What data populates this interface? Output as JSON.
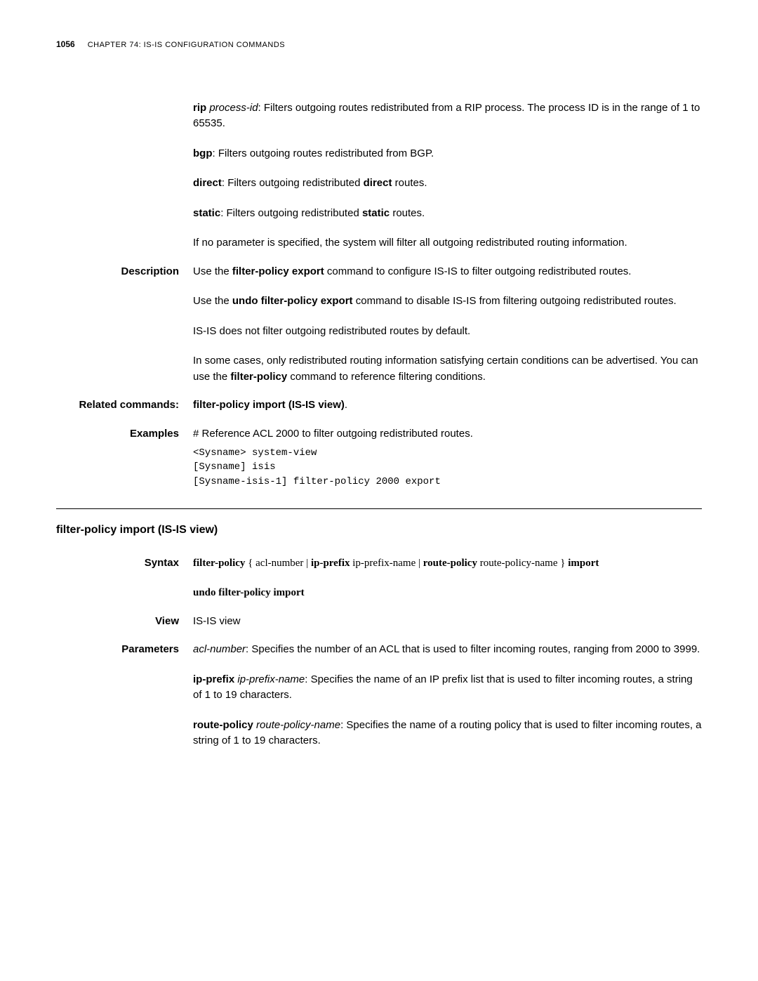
{
  "header": {
    "page_number": "1056",
    "chapter_prefix": "C",
    "chapter_word": "HAPTER",
    "chapter_num": " 74: IS-IS C",
    "chapter_suffix1": "ONFIGURATION",
    "chapter_suffix2": " C",
    "chapter_suffix3": "OMMANDS"
  },
  "top_params": {
    "rip_bold": "rip",
    "rip_italic": " process-id",
    "rip_text": ": Filters outgoing routes redistributed from a RIP process. The process ID is in the range of 1 to 65535.",
    "bgp_bold": "bgp",
    "bgp_text": ": Filters outgoing routes redistributed from BGP.",
    "direct_bold": "direct",
    "direct_text1": ": Filters outgoing redistributed ",
    "direct_bold2": "direct",
    "direct_text2": " routes.",
    "static_bold": "static",
    "static_text1": ": Filters outgoing redistributed ",
    "static_bold2": "static",
    "static_text2": " routes.",
    "no_param": "If no parameter is specified, the system will filter all outgoing redistributed routing information."
  },
  "description": {
    "label": "Description",
    "p1_text1": "Use the ",
    "p1_bold": "filter-policy export",
    "p1_text2": " command to configure IS-IS to filter outgoing redistributed routes.",
    "p2_text1": "Use the ",
    "p2_bold": "undo filter-policy export",
    "p2_text2": " command to disable IS-IS from filtering outgoing redistributed routes.",
    "p3": "IS-IS does not filter outgoing redistributed routes by default.",
    "p4_text1": "In some cases, only redistributed routing information satisfying certain conditions can be advertised. You can use the ",
    "p4_bold": "filter-policy",
    "p4_text2": " command to reference filtering conditions."
  },
  "related": {
    "label": "Related commands:",
    "text": "filter-policy import (IS-IS view)",
    "period": "."
  },
  "examples": {
    "label": "Examples",
    "text": "# Reference ACL 2000 to filter outgoing redistributed routes.",
    "code": "<Sysname> system-view\n[Sysname] isis\n[Sysname-isis-1] filter-policy 2000 export"
  },
  "section_title": "filter-policy import (IS-IS view)",
  "syntax": {
    "label": "Syntax",
    "l1_b1": "filter-policy",
    "l1_t1": " { ",
    "l1_n1": "acl-number",
    "l1_t2": " | ",
    "l1_b2": "ip-prefix",
    "l1_t3": " ",
    "l1_n2": "ip-prefix-name",
    "l1_t4": " | ",
    "l1_b3": "route-policy",
    "l1_t5": " ",
    "l1_n3": "route-policy-name",
    "l1_t6": " } ",
    "l1_b4": "import",
    "l2": "undo filter-policy import"
  },
  "view": {
    "label": "View",
    "text": "IS-IS view"
  },
  "parameters": {
    "label": "Parameters",
    "p1_italic": "acl-number",
    "p1_text": ": Specifies the number of an ACL that is used to filter incoming routes, ranging from 2000 to 3999.",
    "p2_bold": "ip-prefix",
    "p2_italic": " ip-prefix-name",
    "p2_text": ": Specifies the name of an IP prefix list that is used to filter incoming routes, a string of 1 to 19 characters.",
    "p3_bold": "route-policy",
    "p3_italic": " route-policy-name",
    "p3_text": ": Specifies the name of a routing policy that is used to filter incoming routes, a string of 1 to 19 characters."
  }
}
